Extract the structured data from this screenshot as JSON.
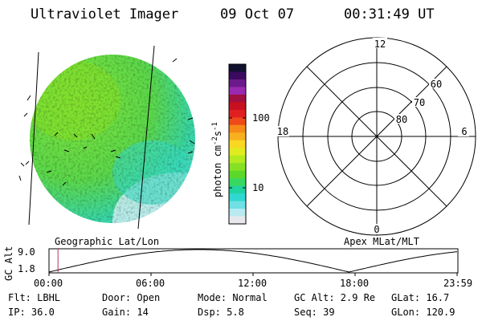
{
  "header": {
    "instrument": "Ultraviolet Imager",
    "date": "09 Oct 07",
    "time": "00:31:49 UT"
  },
  "colorbar": {
    "unit_label": "photon cm",
    "exp1": "-2",
    "s_label": "s",
    "exp2": "-1",
    "ticks": [
      "100",
      "10"
    ],
    "colors": [
      "#111030",
      "#3a0a5e",
      "#6a1a8a",
      "#9a2ab0",
      "#a01040",
      "#c81020",
      "#e02020",
      "#f04a1a",
      "#f58a18",
      "#f8b020",
      "#f8d820",
      "#e0ec20",
      "#b4ea20",
      "#86e024",
      "#5cd82a",
      "#38d860",
      "#20d4a0",
      "#30d8d0",
      "#70e0e4",
      "#b8eaf0",
      "#e8e8ec"
    ]
  },
  "left_panel": {
    "caption": "Geographic Lat/Lon"
  },
  "right_panel": {
    "caption": "Apex MLat/MLT",
    "mlt_labels": {
      "top": "12",
      "bottom": "0",
      "left": "18",
      "right": "6"
    },
    "lat_labels": [
      "60",
      "70",
      "80"
    ]
  },
  "altitude_plot": {
    "ylabel": "GC Alt",
    "ymax": "9.0",
    "ymin": "1.8",
    "xticks": [
      "00:00",
      "06:00",
      "12:00",
      "18:00",
      "23:59"
    ],
    "current_fraction": 0.022
  },
  "status": {
    "flt": "Flt: LBHL",
    "door": "Door: Open",
    "mode": "Mode: Normal",
    "gc_alt": "GC Alt: 2.9 Re",
    "glat": "GLat: 16.7",
    "ip": "IP: 36.0",
    "gain": "Gain: 14",
    "dsp": "Dsp:   5.8",
    "seq": "Seq: 39",
    "glon": "GLon: 120.9"
  }
}
